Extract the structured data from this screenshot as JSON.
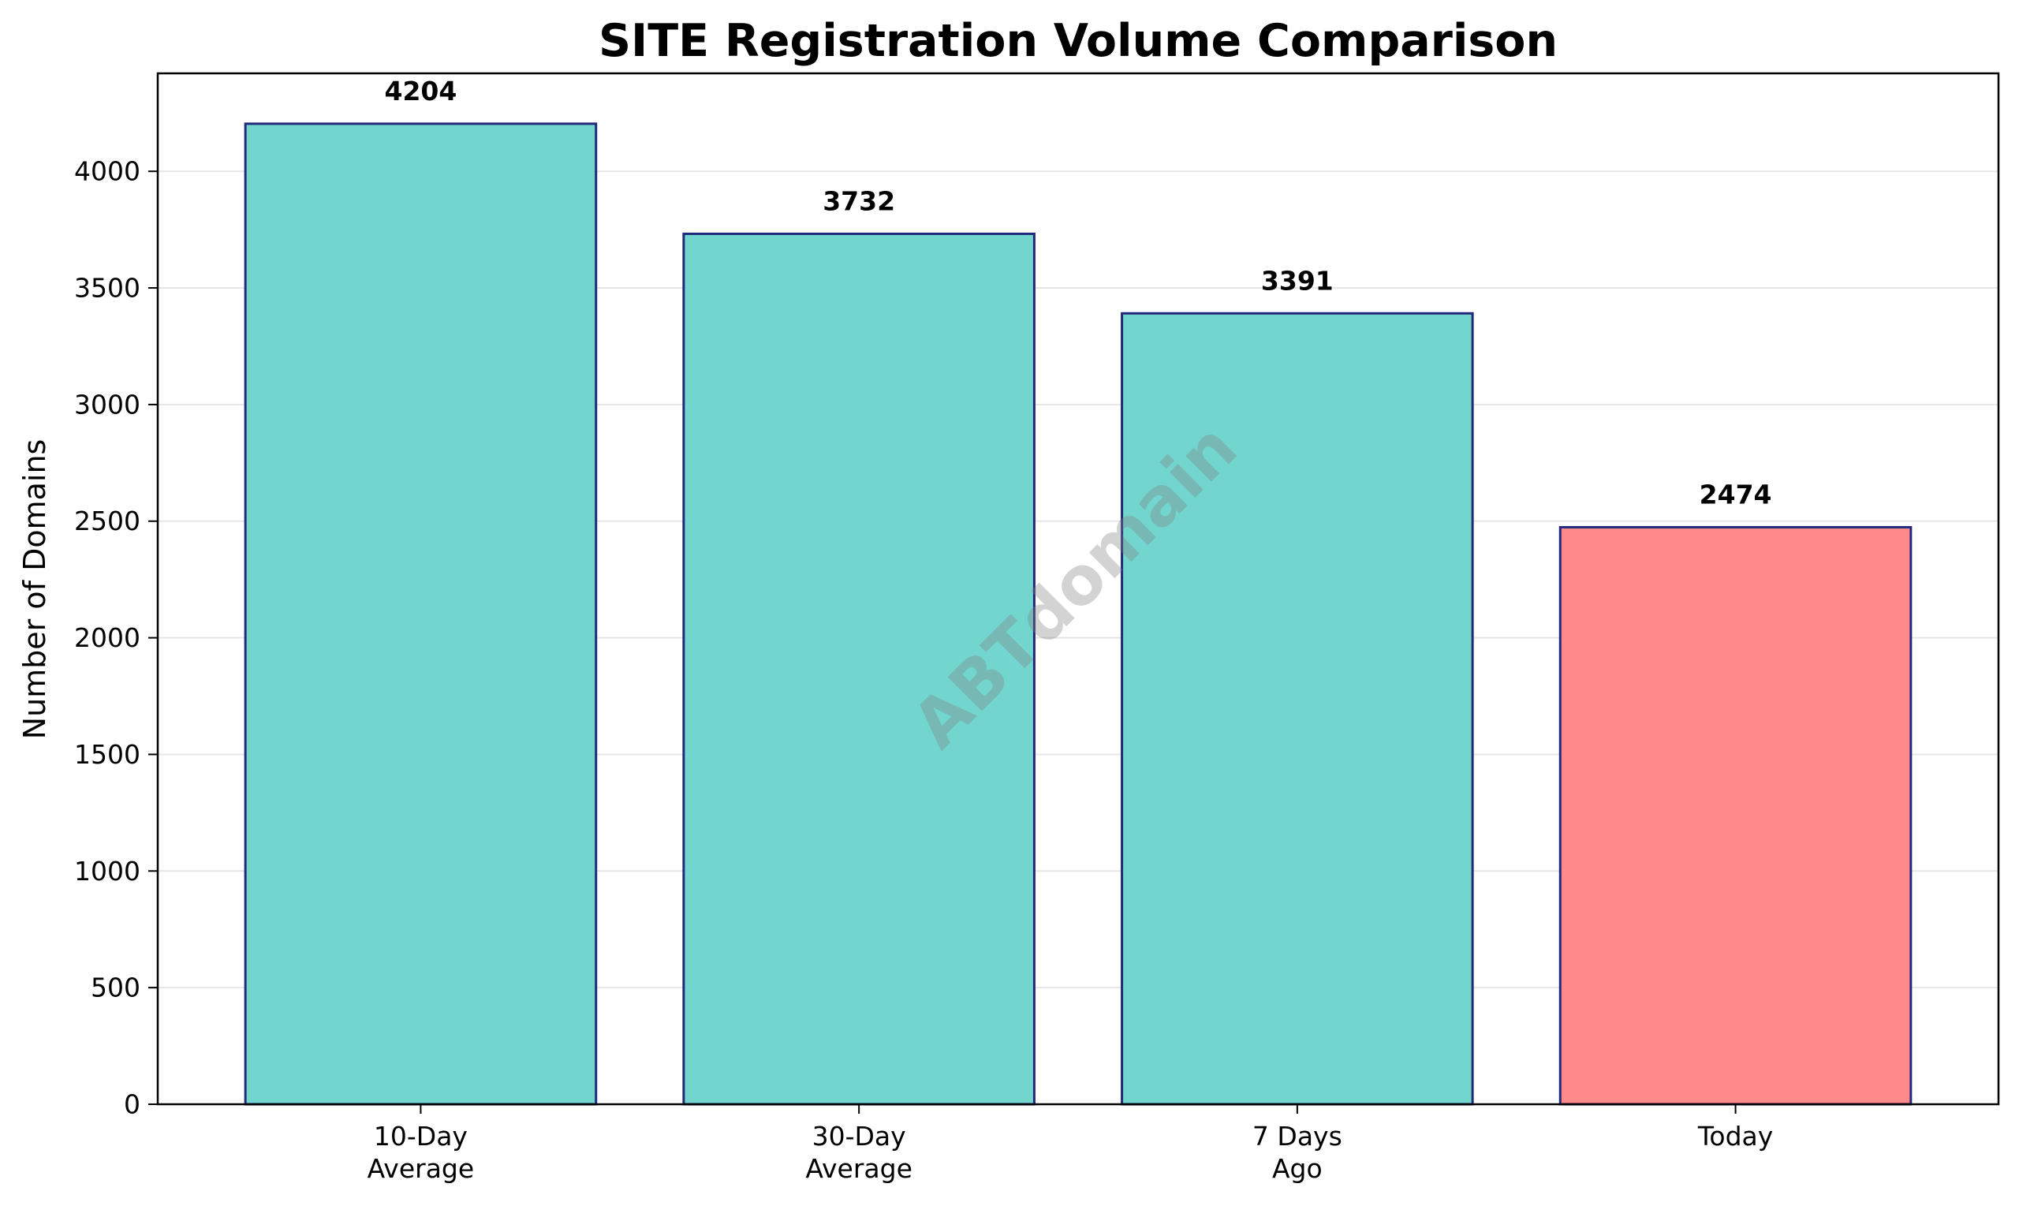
{
  "chart_data": {
    "type": "bar",
    "title": "SITE Registration Volume Comparison",
    "xlabel": "",
    "ylabel": "Number of Domains",
    "categories": [
      [
        "10-Day",
        "Average"
      ],
      [
        "30-Day",
        "Average"
      ],
      [
        "7 Days",
        "Ago"
      ],
      [
        "Today"
      ]
    ],
    "values": [
      4204,
      3732,
      3391,
      2474
    ],
    "data_labels": [
      "4204",
      "3732",
      "3391",
      "2474"
    ],
    "bar_colors": [
      "#72d6cf",
      "#72d6cf",
      "#72d6cf",
      "#ff8a8a"
    ],
    "bar_edge_color": "#23297a",
    "ylim": [
      0,
      4420
    ],
    "yticks": [
      0,
      500,
      1000,
      1500,
      2000,
      2500,
      3000,
      3500,
      4000
    ],
    "ytick_labels": [
      "0",
      "500",
      "1000",
      "1500",
      "2000",
      "2500",
      "3000",
      "3500",
      "4000"
    ],
    "grid": "horizontal",
    "grid_color": "#e6e6e6",
    "watermark": "ABTdomain"
  }
}
